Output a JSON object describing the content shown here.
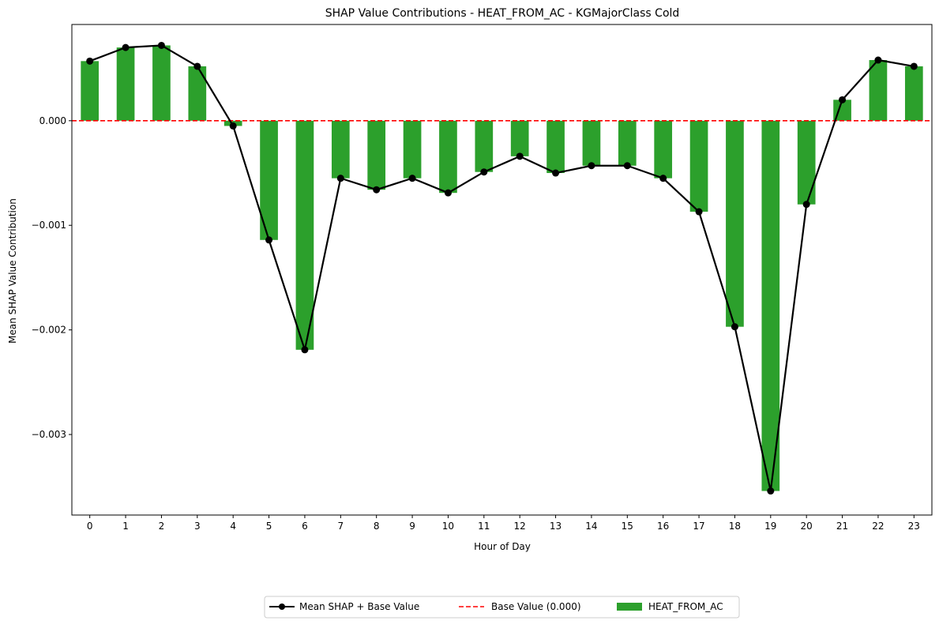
{
  "chart_data": {
    "type": "bar",
    "title": "SHAP Value Contributions - HEAT_FROM_AC - KGMajorClass Cold",
    "xlabel": "Hour of Day",
    "ylabel": "Mean SHAP Value Contribution",
    "categories": [
      "0",
      "1",
      "2",
      "3",
      "4",
      "5",
      "6",
      "7",
      "8",
      "9",
      "10",
      "11",
      "12",
      "13",
      "14",
      "15",
      "16",
      "17",
      "18",
      "19",
      "20",
      "21",
      "22",
      "23"
    ],
    "series": [
      {
        "name": "HEAT_FROM_AC",
        "kind": "bar",
        "color": "#2ca02c",
        "values": [
          0.00057,
          0.0007,
          0.00072,
          0.00052,
          -5e-05,
          -0.00114,
          -0.00219,
          -0.00055,
          -0.00066,
          -0.00055,
          -0.00069,
          -0.00049,
          -0.00034,
          -0.0005,
          -0.00043,
          -0.00043,
          -0.00055,
          -0.00087,
          -0.00197,
          -0.00354,
          -0.0008,
          0.0002,
          0.00058,
          0.00052
        ]
      },
      {
        "name": "Mean SHAP + Base Value",
        "kind": "line",
        "color": "#000000",
        "values": [
          0.00057,
          0.0007,
          0.00072,
          0.00052,
          -5e-05,
          -0.00114,
          -0.00219,
          -0.00055,
          -0.00066,
          -0.00055,
          -0.00069,
          -0.00049,
          -0.00034,
          -0.0005,
          -0.00043,
          -0.00043,
          -0.00055,
          -0.00087,
          -0.00197,
          -0.00354,
          -0.0008,
          0.0002,
          0.00058,
          0.00052
        ]
      }
    ],
    "reference_line": {
      "name": "Base Value (0.000)",
      "value": 0.0,
      "color": "#ff0000",
      "style": "dashed"
    },
    "yticks": [
      0.0,
      -0.001,
      -0.002,
      -0.003
    ],
    "ytick_labels": [
      "0.000",
      "−0.001",
      "−0.002",
      "−0.003"
    ],
    "ylim": [
      -0.00377,
      0.00092
    ],
    "grid": false,
    "legend_position": "bottom-center"
  }
}
